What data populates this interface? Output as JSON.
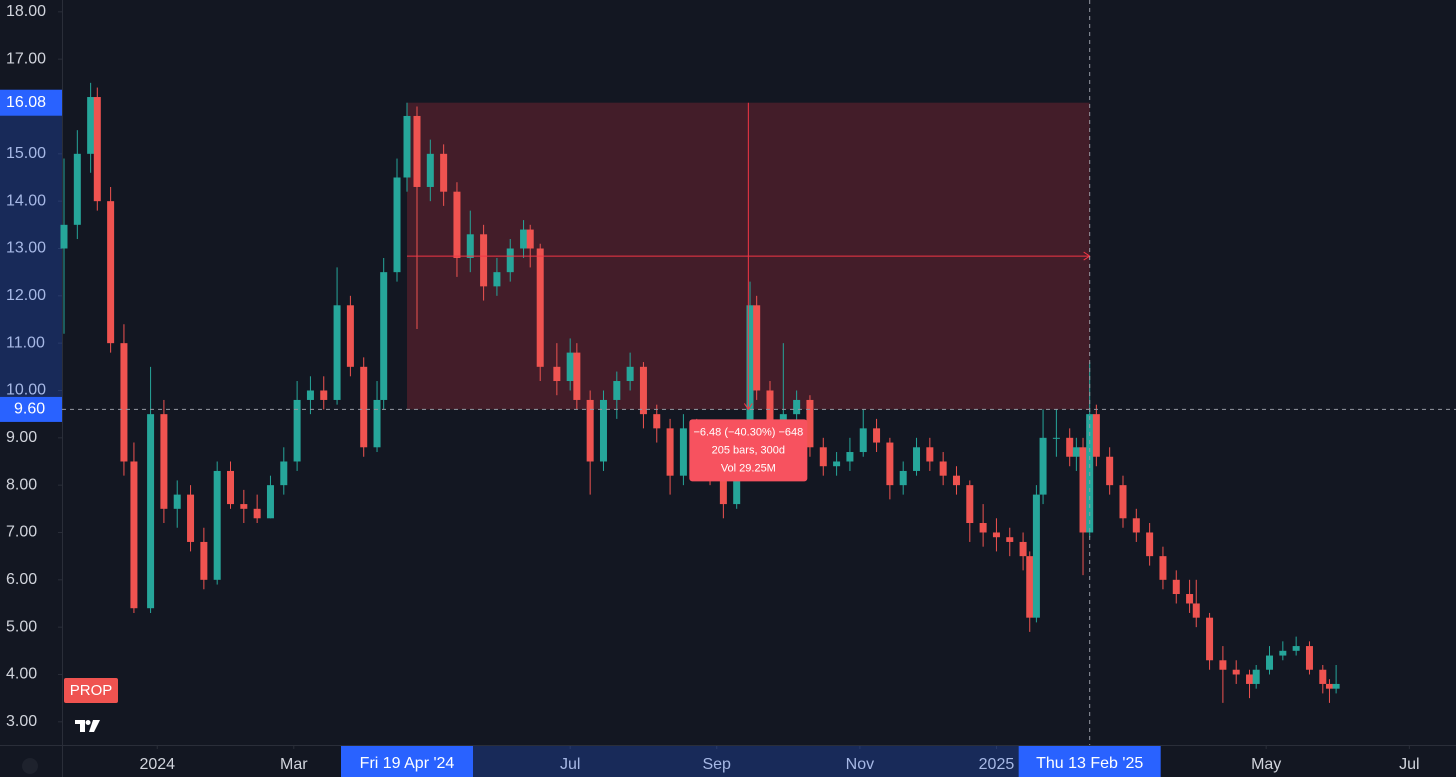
{
  "chart_data": {
    "type": "candlestick",
    "symbol": "PROP",
    "up_color": "#26a69a",
    "down_color": "#ef5350",
    "x": [
      0,
      4,
      8,
      10,
      14,
      18,
      21,
      26,
      30,
      34,
      38,
      42,
      46,
      50,
      54,
      58,
      62,
      66,
      70,
      74,
      78,
      82,
      86,
      90,
      94,
      96,
      100,
      103,
      106,
      110,
      114,
      118,
      122,
      126,
      130,
      134,
      138,
      140,
      143,
      148,
      152,
      154,
      158,
      162,
      166,
      170,
      174,
      178,
      182,
      186,
      190,
      194,
      198,
      202,
      204,
      206,
      208,
      212,
      216,
      220,
      224,
      228,
      232,
      236,
      240,
      244,
      248,
      252,
      256,
      260,
      264,
      268,
      272,
      276,
      280,
      284,
      288,
      290,
      292,
      294,
      298,
      302,
      304,
      306,
      308,
      310,
      314,
      318,
      322,
      326,
      330,
      334,
      338,
      340,
      344,
      348,
      352,
      356,
      358,
      362,
      366,
      370,
      374,
      378,
      380,
      382
    ],
    "open": [
      13.0,
      13.5,
      15.0,
      16.2,
      14.0,
      11.0,
      8.5,
      5.4,
      9.5,
      7.5,
      7.8,
      6.8,
      6.0,
      8.3,
      7.6,
      7.5,
      7.3,
      8.0,
      8.5,
      9.8,
      10.0,
      9.8,
      11.8,
      10.5,
      8.8,
      9.8,
      12.5,
      14.5,
      15.8,
      14.3,
      15.0,
      14.2,
      12.8,
      13.3,
      12.2,
      12.5,
      13.0,
      13.4,
      13.0,
      10.5,
      10.2,
      10.8,
      9.8,
      8.5,
      9.8,
      10.2,
      10.5,
      9.5,
      9.2,
      8.2,
      9.2,
      8.8,
      8.2,
      7.6,
      8.5,
      9.0,
      11.8,
      10.0,
      9.0,
      9.5,
      9.8,
      8.8,
      8.4,
      8.5,
      8.7,
      9.2,
      8.9,
      8.0,
      8.3,
      8.8,
      8.5,
      8.2,
      8.0,
      7.2,
      7.0,
      6.9,
      6.8,
      6.5,
      5.2,
      7.8,
      9.0,
      9.0,
      8.6,
      8.8,
      7.0,
      9.5,
      8.6,
      8.0,
      7.3,
      7.0,
      6.5,
      6.0,
      5.7,
      5.5,
      5.2,
      4.3,
      4.1,
      4.0,
      3.8,
      4.1,
      4.4,
      4.5,
      4.6,
      4.1,
      3.8,
      3.7
    ],
    "high": [
      14.9,
      15.5,
      16.5,
      16.4,
      14.3,
      11.4,
      8.9,
      10.5,
      9.8,
      8.1,
      8.0,
      7.1,
      8.5,
      8.5,
      7.9,
      7.8,
      8.2,
      8.8,
      10.2,
      10.3,
      10.3,
      12.6,
      12.0,
      10.7,
      10.2,
      12.8,
      14.9,
      16.08,
      16.0,
      15.3,
      15.2,
      14.4,
      13.8,
      13.5,
      12.8,
      13.2,
      13.6,
      13.5,
      13.1,
      11.0,
      11.1,
      11.0,
      10.0,
      10.0,
      10.4,
      10.8,
      10.6,
      9.7,
      9.4,
      9.5,
      9.4,
      9.0,
      8.4,
      8.8,
      9.2,
      12.3,
      12.0,
      10.2,
      11.0,
      10.0,
      9.9,
      9.0,
      8.7,
      9.0,
      9.6,
      9.4,
      9.0,
      8.5,
      9.0,
      9.0,
      8.7,
      8.4,
      8.1,
      7.6,
      7.3,
      7.1,
      7.0,
      6.6,
      8.0,
      9.6,
      9.6,
      9.2,
      9.0,
      9.0,
      10.6,
      9.7,
      8.8,
      8.2,
      7.5,
      7.2,
      6.7,
      6.2,
      6.0,
      6.0,
      5.3,
      4.6,
      4.3,
      4.1,
      4.2,
      4.6,
      4.7,
      4.8,
      4.7,
      4.2,
      3.9,
      4.2
    ],
    "low": [
      11.2,
      13.2,
      14.6,
      13.8,
      10.8,
      8.2,
      5.3,
      5.3,
      7.2,
      7.1,
      6.6,
      5.8,
      5.9,
      7.5,
      7.2,
      7.2,
      7.3,
      7.8,
      8.3,
      9.5,
      9.6,
      9.7,
      10.3,
      8.6,
      8.7,
      9.6,
      12.3,
      14.2,
      11.3,
      14.0,
      13.9,
      12.4,
      12.5,
      11.9,
      12.0,
      12.3,
      12.8,
      12.6,
      10.2,
      9.9,
      10.0,
      9.6,
      7.8,
      8.3,
      9.4,
      10.0,
      9.2,
      8.9,
      7.8,
      8.0,
      8.6,
      8.0,
      7.3,
      7.5,
      8.3,
      8.9,
      9.8,
      8.8,
      8.8,
      9.3,
      8.6,
      8.2,
      8.2,
      8.3,
      8.6,
      8.7,
      7.7,
      7.8,
      8.2,
      8.3,
      8.0,
      7.8,
      6.8,
      6.7,
      6.6,
      6.5,
      6.2,
      4.9,
      5.1,
      7.6,
      8.6,
      8.4,
      8.3,
      6.1,
      6.9,
      8.4,
      7.8,
      7.1,
      6.8,
      6.3,
      5.8,
      5.5,
      5.3,
      5.0,
      4.1,
      3.4,
      3.8,
      3.5,
      3.7,
      4.0,
      4.3,
      4.4,
      4.0,
      3.6,
      3.4,
      3.6
    ],
    "close": [
      13.5,
      15.0,
      16.2,
      14.0,
      11.0,
      8.5,
      5.4,
      9.5,
      7.5,
      7.8,
      6.8,
      6.0,
      8.3,
      7.6,
      7.5,
      7.3,
      8.0,
      8.5,
      9.8,
      10.0,
      9.8,
      11.8,
      10.5,
      8.8,
      9.8,
      12.5,
      14.5,
      15.8,
      14.3,
      15.0,
      14.2,
      12.8,
      13.3,
      12.2,
      12.5,
      13.0,
      13.4,
      13.0,
      10.5,
      10.2,
      10.8,
      9.8,
      8.5,
      9.8,
      10.2,
      10.5,
      9.5,
      9.2,
      8.2,
      9.2,
      8.8,
      8.2,
      7.6,
      8.5,
      9.0,
      11.8,
      10.0,
      9.0,
      9.5,
      9.8,
      8.8,
      8.4,
      8.5,
      8.7,
      9.2,
      8.9,
      8.0,
      8.3,
      8.8,
      8.5,
      8.2,
      8.0,
      7.2,
      7.0,
      6.9,
      6.8,
      6.5,
      5.2,
      7.8,
      9.0,
      9.0,
      8.6,
      8.8,
      7.0,
      9.5,
      8.6,
      8.0,
      7.3,
      7.0,
      6.5,
      6.0,
      5.7,
      5.5,
      5.2,
      4.3,
      4.1,
      4.0,
      3.8,
      4.1,
      4.4,
      4.5,
      4.6,
      4.1,
      3.8,
      3.7,
      3.8
    ],
    "xlim": [
      -0.6,
      418
    ],
    "ylim": [
      2.51,
      18.25
    ],
    "yticks": [
      {
        "value": 3,
        "label": "3.00"
      },
      {
        "value": 4,
        "label": "4.00"
      },
      {
        "value": 5,
        "label": "5.00"
      },
      {
        "value": 6,
        "label": "6.00"
      },
      {
        "value": 7,
        "label": "7.00"
      },
      {
        "value": 8,
        "label": "8.00"
      },
      {
        "value": 9,
        "label": "9.00"
      },
      {
        "value": 10,
        "label": "10.00"
      },
      {
        "value": 11,
        "label": "11.00"
      },
      {
        "value": 12,
        "label": "12.00"
      },
      {
        "value": 13,
        "label": "13.00"
      },
      {
        "value": 14,
        "label": "14.00"
      },
      {
        "value": 15,
        "label": "15.00"
      },
      {
        "value": 16,
        "label": "16.00"
      },
      {
        "value": 17,
        "label": "17.00"
      },
      {
        "value": 18,
        "label": "18.00"
      }
    ],
    "xticks": [
      {
        "value": 28,
        "label": "2024"
      },
      {
        "value": 69,
        "label": "Mar"
      },
      {
        "value": 152,
        "label": "Jul"
      },
      {
        "value": 196,
        "label": "Sep"
      },
      {
        "value": 239,
        "label": "Nov"
      },
      {
        "value": 280,
        "label": "2025"
      },
      {
        "value": 361,
        "label": "May"
      },
      {
        "value": 404,
        "label": "Jul"
      }
    ],
    "measure": {
      "start": {
        "value": 103,
        "label": "Fri 19 Apr '24"
      },
      "high": {
        "value": 16.08,
        "label": "16.08"
      },
      "lines": [
        "−6.48 (−40.30%) −648",
        "205 bars, 300d",
        "Vol 29.25M"
      ]
    },
    "crosshair": {
      "x": {
        "value": 308,
        "label": "Thu 13 Feb '25"
      },
      "y": {
        "value": 9.6,
        "label": "9.60"
      }
    }
  }
}
